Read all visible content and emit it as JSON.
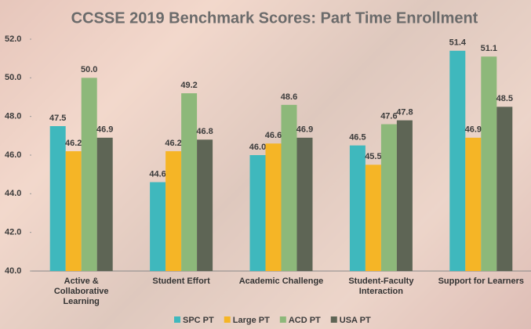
{
  "chart_data": {
    "type": "bar",
    "title": "CCSSE 2019 Benchmark Scores: Part Time Enrollment",
    "categories": [
      "Active & Collaborative Learning",
      "Student Effort",
      "Academic Challenge",
      "Student-Faculty Interaction",
      "Support for Learners"
    ],
    "series": [
      {
        "name": "SPC PT",
        "color": "#3fb8bd",
        "values": [
          47.5,
          44.6,
          46.0,
          46.5,
          51.4
        ],
        "value_labels": [
          "47.5",
          "44.6",
          "46.0",
          "46.5",
          "51.4"
        ]
      },
      {
        "name": "Large PT",
        "color": "#f5b526",
        "values": [
          46.2,
          46.2,
          46.6,
          45.5,
          46.9
        ],
        "value_labels": [
          "46.2",
          "46.2",
          "46.6",
          "45.5",
          "46.9"
        ]
      },
      {
        "name": "ACD PT",
        "color": "#8db87a",
        "values": [
          50.0,
          49.2,
          48.6,
          47.6,
          51.1
        ],
        "value_labels": [
          "50.0",
          "49.2",
          "48.6",
          "47.6",
          "51.1"
        ]
      },
      {
        "name": "USA PT",
        "color": "#5e6555",
        "values": [
          46.9,
          46.8,
          46.9,
          47.8,
          48.5
        ],
        "value_labels": [
          "46.9",
          "46.8",
          "46.9",
          "47.8",
          "48.5"
        ]
      }
    ],
    "ylim": [
      40,
      52
    ],
    "yticks": [
      {
        "value": 40,
        "label": "40.0"
      },
      {
        "value": 42,
        "label": "42.0"
      },
      {
        "value": 44,
        "label": "44.0"
      },
      {
        "value": 46,
        "label": "46.0"
      },
      {
        "value": 48,
        "label": "48.0"
      },
      {
        "value": 50,
        "label": "50.0"
      },
      {
        "value": 52,
        "label": "52.0"
      }
    ],
    "legend": "bottom"
  }
}
